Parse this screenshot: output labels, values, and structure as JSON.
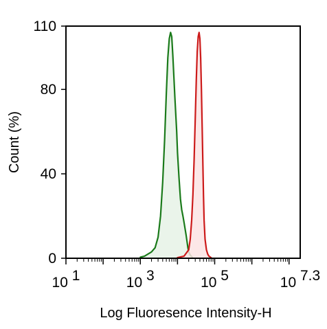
{
  "chart_data": {
    "type": "area",
    "xlabel": "Log Fluoresence Intensity-H",
    "ylabel": "Count  (%)",
    "x_scale": "log10",
    "xlim": [
      10,
      19952623
    ],
    "ylim": [
      0,
      110
    ],
    "x_ticks": [
      {
        "value": 10,
        "base": "10",
        "exp": "1"
      },
      {
        "value": 1000,
        "base": "10",
        "exp": "3"
      },
      {
        "value": 100000,
        "base": "10",
        "exp": "5"
      },
      {
        "value": 19952623,
        "base": "10",
        "exp": "7.3"
      }
    ],
    "y_ticks": [
      0,
      40,
      80,
      110
    ],
    "grid": false,
    "legend": "none",
    "series": [
      {
        "color": "#1a7a1a",
        "fill": "#e6f2e6",
        "x": [
          1000,
          1300,
          1600,
          2000,
          2500,
          3000,
          3500,
          4000,
          4500,
          5000,
          5500,
          6000,
          6500,
          7000,
          7500,
          8000,
          8500,
          9000,
          9500,
          10000,
          11000,
          12000,
          13000,
          14000,
          15000,
          16000,
          17000,
          18000,
          19000,
          20000,
          22000,
          25000
        ],
        "values": [
          0.5,
          1,
          2,
          3,
          5,
          10,
          20,
          36,
          56,
          78,
          95,
          104,
          107,
          105,
          96,
          86,
          76,
          68,
          60,
          50,
          38,
          28,
          23,
          20,
          17,
          14,
          11,
          8,
          5,
          3,
          1.5,
          0.5
        ]
      },
      {
        "color": "#cc1a1a",
        "fill": "#fbe3e3",
        "x": [
          10000,
          15000,
          20000,
          22000,
          24000,
          26000,
          28000,
          30000,
          32000,
          34000,
          36000,
          38000,
          40000,
          42000,
          44000,
          46000,
          48000,
          50000,
          52000,
          55000,
          60000,
          65000,
          70000,
          80000
        ],
        "values": [
          0.3,
          1,
          4,
          9,
          18,
          30,
          47,
          66,
          84,
          98,
          105,
          107,
          104,
          95,
          80,
          62,
          45,
          30,
          18,
          9,
          4,
          2,
          1,
          0.3
        ]
      }
    ]
  }
}
